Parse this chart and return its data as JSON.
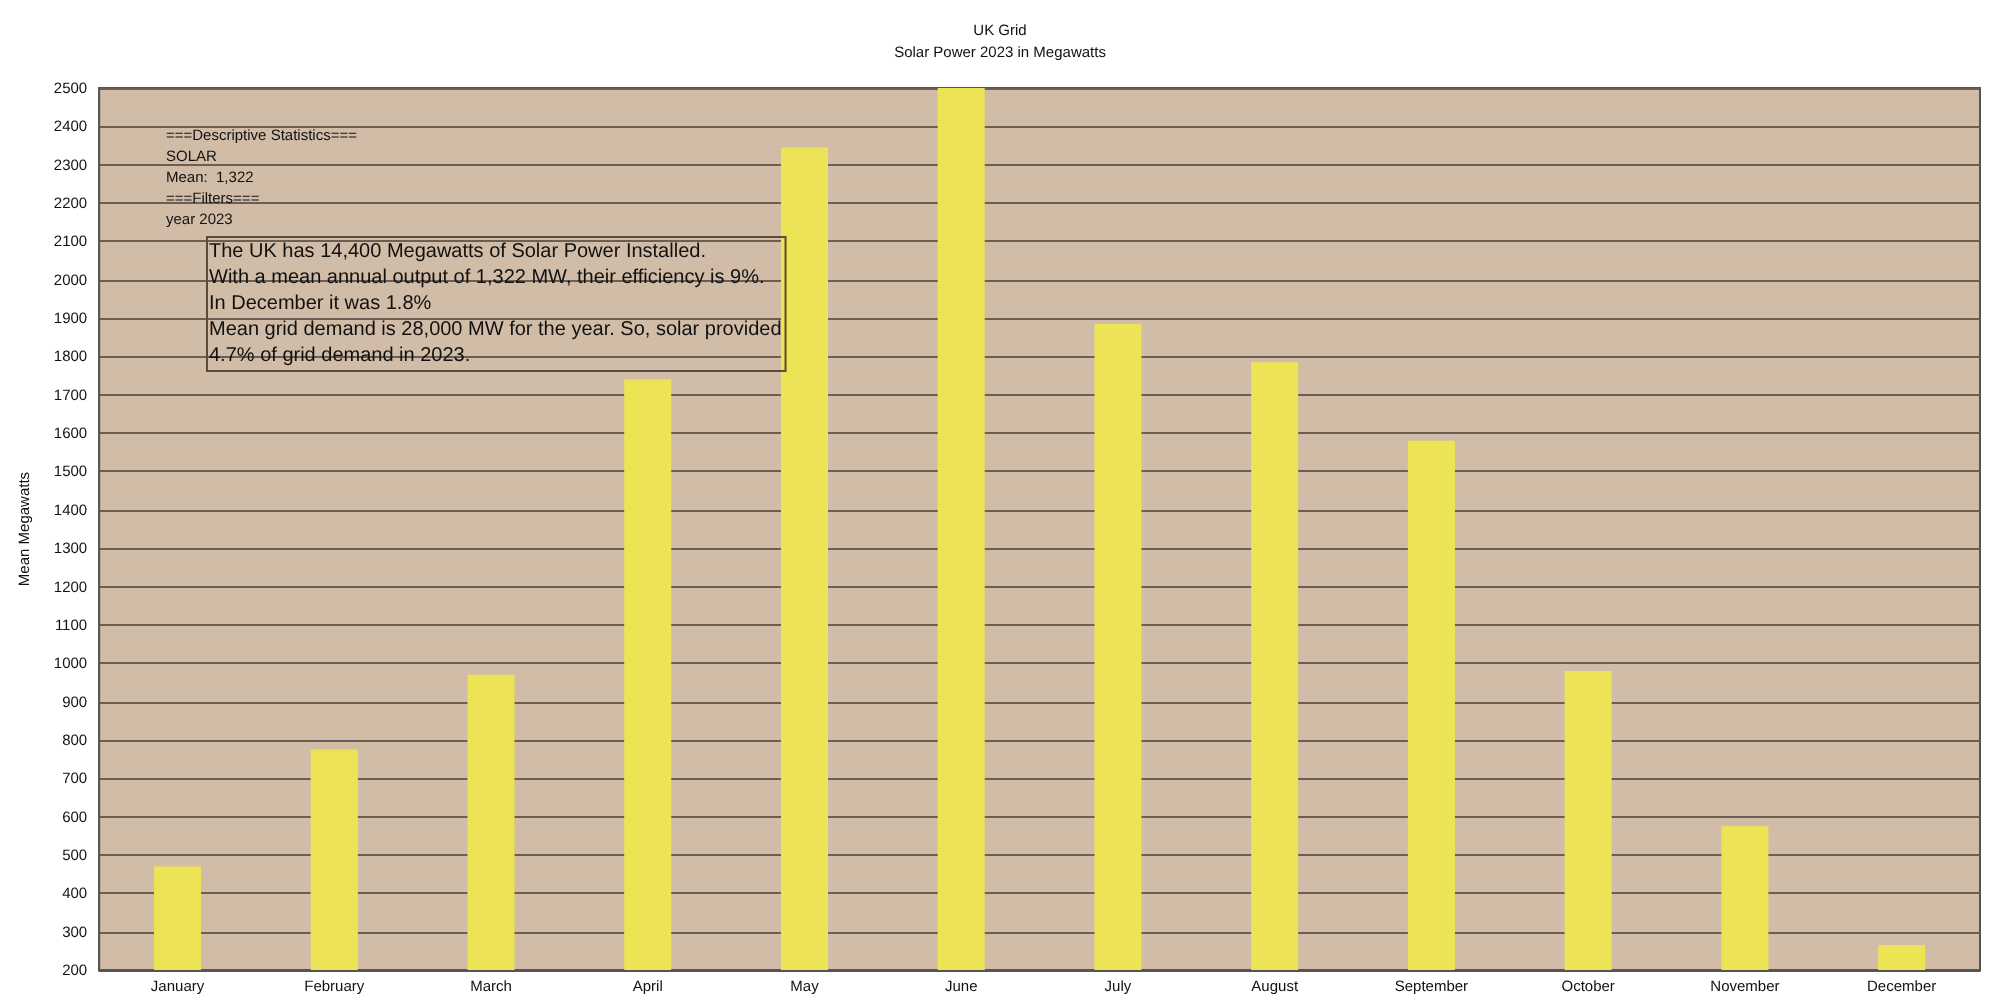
{
  "chart_data": {
    "type": "bar",
    "title": "UK Grid",
    "subtitle": "Solar Power 2023 in Megawatts",
    "ylabel": "Mean Megawatts",
    "categories": [
      "January",
      "February",
      "March",
      "April",
      "May",
      "June",
      "July",
      "August",
      "September",
      "October",
      "November",
      "December"
    ],
    "values": [
      470,
      775,
      970,
      1740,
      2345,
      2500,
      1885,
      1785,
      1580,
      980,
      575,
      265
    ],
    "color": "#ece455",
    "ylim": [
      200,
      2500
    ],
    "yticks": [
      200,
      300,
      400,
      500,
      600,
      700,
      800,
      900,
      1000,
      1100,
      1200,
      1300,
      1400,
      1500,
      1600,
      1700,
      1800,
      1900,
      2000,
      2100,
      2200,
      2300,
      2400,
      2500
    ],
    "grid": "y",
    "annotations": [
      "===Descriptive Statistics===\nSOLAR\nMean:  1,322\n===Filters===\nyear 2023",
      "The UK has 14,400 Megawatts of Solar Power Installed.\nWith a mean annual output of 1,322 MW, their efficiency is 9%.\nIn December it was 1.8%\nMean grid demand is 28,000 MW for the year. So, solar provided\n4.7% of grid demand in 2023."
    ]
  }
}
